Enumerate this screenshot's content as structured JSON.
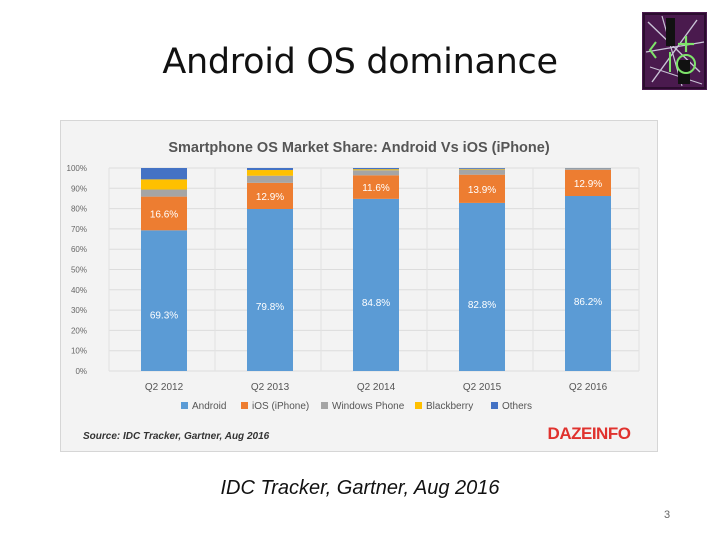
{
  "slide": {
    "title": "Android OS dominance",
    "caption": "IDC Tracker, Gartner, Aug 2016",
    "page_number": "3"
  },
  "chart_data": {
    "type": "bar",
    "stacked": true,
    "title": "Smartphone OS Market Share: Android Vs iOS (iPhone)",
    "source": "Source: IDC Tracker, Gartner, Aug 2016",
    "watermark": "DAZEINFO",
    "categories": [
      "Q2 2012",
      "Q2 2013",
      "Q2 2014",
      "Q2 2015",
      "Q2 2016"
    ],
    "ylim": [
      0,
      100
    ],
    "y_ticks": [
      "0%",
      "10%",
      "20%",
      "30%",
      "40%",
      "50%",
      "60%",
      "70%",
      "80%",
      "90%",
      "100%"
    ],
    "grid": true,
    "legend_position": "bottom",
    "series": [
      {
        "name": "Android",
        "color": "#5b9bd5",
        "values": [
          69.3,
          79.8,
          84.8,
          82.8,
          86.2
        ],
        "labels": [
          "69.3%",
          "79.8%",
          "84.8%",
          "82.8%",
          "86.2%"
        ]
      },
      {
        "name": "iOS (iPhone)",
        "color": "#ed7d31",
        "values": [
          16.6,
          12.9,
          11.6,
          13.9,
          12.9
        ],
        "labels": [
          "16.6%",
          "12.9%",
          "11.6%",
          "13.9%",
          "12.9%"
        ]
      },
      {
        "name": "Windows Phone",
        "color": "#a5a5a5",
        "values": [
          3.5,
          3.5,
          2.5,
          2.6,
          0.6
        ],
        "labels": [
          "",
          "",
          "",
          "",
          ""
        ]
      },
      {
        "name": "Blackberry",
        "color": "#ffc000",
        "values": [
          5,
          2.8,
          0.5,
          0.3,
          0.1
        ],
        "labels": [
          "",
          "",
          "",
          "",
          ""
        ]
      },
      {
        "name": "Others",
        "color": "#4472c4",
        "values": [
          5.6,
          1,
          0.6,
          0.4,
          0.2
        ],
        "labels": [
          "",
          "",
          "",
          "",
          ""
        ]
      }
    ]
  }
}
